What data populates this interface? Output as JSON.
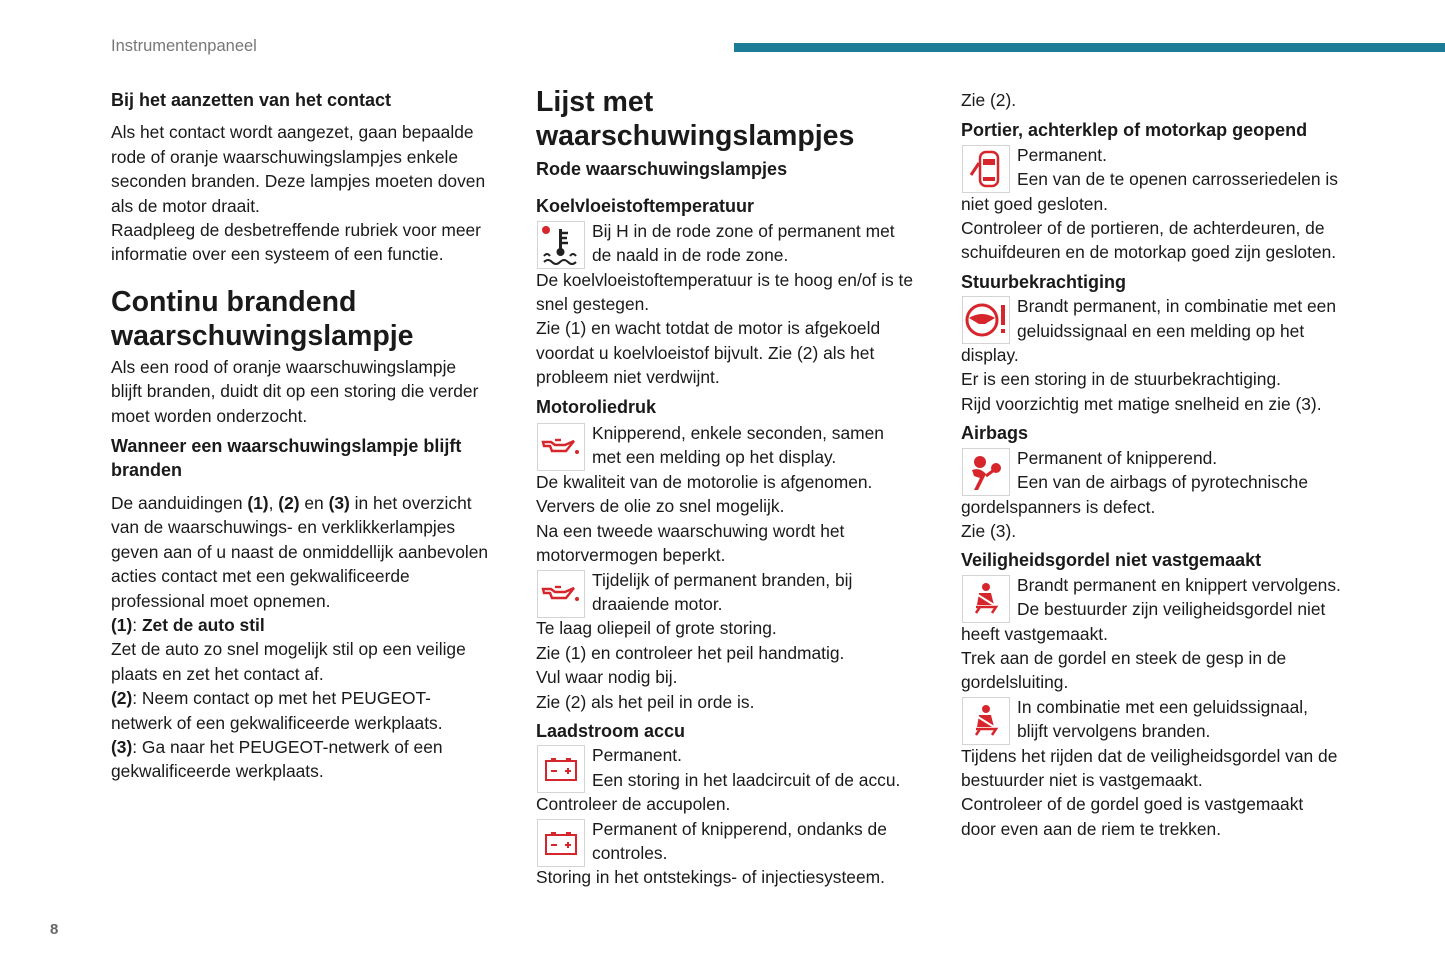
{
  "header": {
    "section": "Instrumentenpaneel",
    "page_number": "8",
    "accent": "#1b7c98"
  },
  "icon_color": "#d7262b",
  "columns": [
    {
      "blocks": [
        {
          "t": "h3",
          "lines": [
            "Bij het aanzetten van het contact"
          ],
          "mt": 0
        },
        {
          "t": "p",
          "mt": 8,
          "lines": [
            "Als het contact wordt aangezet, gaan bepaalde",
            "rode of oranje waarschuwingslampjes enkele",
            "seconden branden. Deze lampjes moeten doven",
            "als de motor draait.",
            "Raadpleeg de desbetreffende rubriek voor meer",
            "informatie over een systeem of een functie."
          ]
        },
        {
          "t": "h2",
          "mt": 18,
          "lines": [
            "Continu brandend",
            "waarschuwingslampje"
          ]
        },
        {
          "t": "p",
          "mt": 2,
          "lines": [
            "Als een rood of oranje waarschuwingslampje",
            "blijft branden, duidt dit op een storing die verder",
            "moet worden onderzocht."
          ]
        },
        {
          "t": "h3",
          "mt": 6,
          "lines": [
            "Wanneer een waarschuwingslampje blijft",
            "branden"
          ]
        },
        {
          "t": "p",
          "mt": 8,
          "lines": [
            [
              "De aanduidingen ",
              {
                "b": "(1)"
              },
              ", ",
              {
                "b": "(2)"
              },
              " en ",
              {
                "b": "(3)"
              },
              " in het overzicht"
            ],
            "van de waarschuwings- en verklikkerlampjes",
            "geven aan of u naast de onmiddellijk aanbevolen",
            "acties contact met een gekwalificeerde",
            "professional moet opnemen.",
            [
              {
                "b": "(1)"
              },
              ": ",
              {
                "b": "Zet de auto stil"
              }
            ],
            "Zet de auto zo snel mogelijk stil op een veilige",
            "plaats en zet het contact af.",
            [
              {
                "b": "(2)"
              },
              ": Neem contact op met het PEUGEOT-"
            ],
            "netwerk of een gekwalificeerde werkplaats.",
            [
              {
                "b": "(3)"
              },
              ": Ga naar het PEUGEOT-netwerk of een"
            ],
            "gekwalificeerde werkplaats."
          ]
        }
      ]
    },
    {
      "blocks": [
        {
          "t": "h2",
          "mt": 0,
          "lines": [
            "Lijst met",
            "waarschuwingslampjes"
          ]
        },
        {
          "t": "h3",
          "mt": 4,
          "lines": [
            "Rode waarschuwingslampjes"
          ]
        },
        {
          "t": "h3",
          "mt": 13,
          "lines": [
            "Koelvloeistoftemperatuur"
          ]
        },
        {
          "t": "ib",
          "icon": "coolant-temperature",
          "mt": 0,
          "lines": [
            "Bij H in de rode zone of permanent met",
            "de naald in de rode zone."
          ]
        },
        {
          "t": "p",
          "mt": 0,
          "lines": [
            "De koelvloeistoftemperatuur is te hoog en/of is te",
            "snel gestegen.",
            "Zie (1) en wacht totdat de motor is afgekoeld",
            "voordat u koelvloeistof bijvult. Zie (2) als het",
            "probleem niet verdwijnt."
          ]
        },
        {
          "t": "h3",
          "mt": 5,
          "lines": [
            "Motoroliedruk"
          ]
        },
        {
          "t": "ib",
          "icon": "oil-pressure",
          "mt": 2,
          "lines": [
            "Knipperend, enkele seconden, samen",
            "met een melding op het display."
          ]
        },
        {
          "t": "p",
          "mt": 0,
          "lines": [
            "De kwaliteit van de motorolie is afgenomen.",
            "Ververs de olie zo snel mogelijk.",
            "Na een tweede waarschuwing wordt het",
            "motorvermogen beperkt."
          ]
        },
        {
          "t": "ib",
          "icon": "oil-pressure",
          "mt": 0,
          "lines": [
            "Tijdelijk of permanent branden, bij",
            "draaiende motor."
          ]
        },
        {
          "t": "p",
          "mt": 0,
          "lines": [
            "Te laag oliepeil of grote storing.",
            "Zie (1) en controleer het peil handmatig.",
            "Vul waar nodig bij.",
            "Zie (2) als het peil in orde is."
          ]
        },
        {
          "t": "h3",
          "mt": 5,
          "lines": [
            "Laadstroom accu"
          ]
        },
        {
          "t": "ib",
          "icon": "battery",
          "mt": 0,
          "lines": [
            "Permanent.",
            "Een storing in het laadcircuit of de accu."
          ]
        },
        {
          "t": "p",
          "mt": 0,
          "lines": [
            "Controleer de accupolen."
          ]
        },
        {
          "t": "ib",
          "icon": "battery",
          "mt": 0,
          "lines": [
            "Permanent of knipperend, ondanks de",
            "controles."
          ]
        },
        {
          "t": "p",
          "mt": 0,
          "lines": [
            "Storing in het ontstekings- of injectiesysteem."
          ]
        }
      ]
    },
    {
      "blocks": [
        {
          "t": "p",
          "mt": 0,
          "lines": [
            "Zie (2)."
          ]
        },
        {
          "t": "h3",
          "mt": 6,
          "lines": [
            "Portier, achterklep of motorkap geopend"
          ]
        },
        {
          "t": "ib",
          "icon": "door-open",
          "mt": 0,
          "lines": [
            "Permanent.",
            "Een van de te openen carrosseriedelen is"
          ]
        },
        {
          "t": "p",
          "mt": 0,
          "lines": [
            "niet goed gesloten.",
            "Controleer of de portieren, de achterdeuren, de",
            "schuifdeuren en de motorkap goed zijn gesloten."
          ]
        },
        {
          "t": "h3",
          "mt": 5,
          "lines": [
            "Stuurbekrachtiging"
          ]
        },
        {
          "t": "ib",
          "icon": "power-steering",
          "mt": 0,
          "lines": [
            "Brandt permanent, in combinatie met een",
            "geluidssignaal en een melding op het"
          ]
        },
        {
          "t": "p",
          "mt": 0,
          "lines": [
            "display.",
            "Er is een storing in de stuurbekrachtiging.",
            "Rijd voorzichtig met matige snelheid en zie (3)."
          ]
        },
        {
          "t": "h3",
          "mt": 5,
          "lines": [
            "Airbags"
          ]
        },
        {
          "t": "ib",
          "icon": "airbag",
          "mt": 0,
          "lines": [
            "Permanent of knipperend.",
            "Een van de airbags of pyrotechnische"
          ]
        },
        {
          "t": "p",
          "mt": 0,
          "lines": [
            "gordelspanners is defect.",
            "Zie (3)."
          ]
        },
        {
          "t": "h3",
          "mt": 5,
          "lines": [
            "Veiligheidsgordel niet vastgemaakt"
          ]
        },
        {
          "t": "ib",
          "icon": "seatbelt",
          "mt": 0,
          "lines": [
            "Brandt permanent en knippert vervolgens.",
            "De bestuurder zijn veiligheidsgordel niet"
          ]
        },
        {
          "t": "p",
          "mt": 0,
          "lines": [
            "heeft vastgemaakt.",
            "Trek aan de gordel en steek de gesp in de",
            "gordelsluiting."
          ]
        },
        {
          "t": "ib",
          "icon": "seatbelt",
          "mt": 0,
          "lines": [
            "In combinatie met een geluidssignaal,",
            "blijft vervolgens branden."
          ]
        },
        {
          "t": "p",
          "mt": 0,
          "lines": [
            "Tijdens het rijden dat de veiligheidsgordel van de",
            "bestuurder niet is vastgemaakt.",
            "Controleer of de gordel goed is vastgemaakt",
            "door even aan de riem te trekken."
          ]
        }
      ]
    }
  ]
}
